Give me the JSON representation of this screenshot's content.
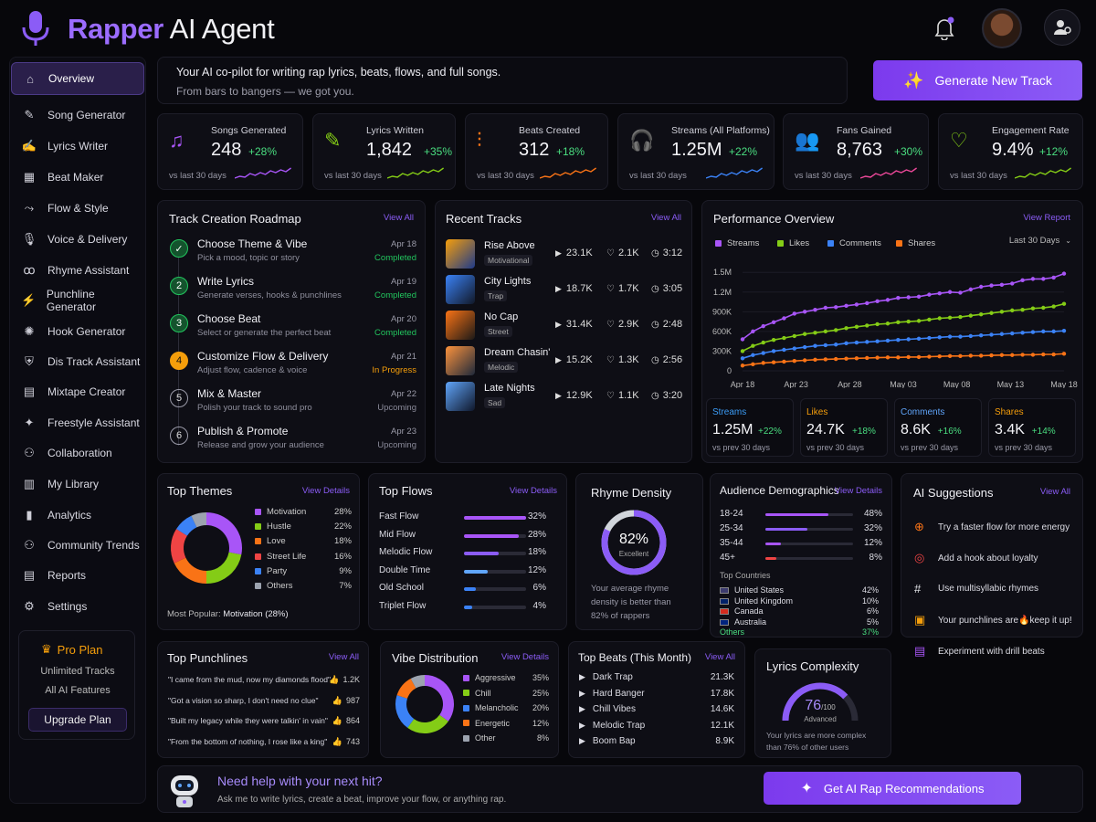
{
  "brand": {
    "part1": "Rapper",
    "part2": "AI Agent"
  },
  "header": {
    "tagline": "Your AI co-pilot for writing rap lyrics, beats, flows, and full songs.",
    "subtagline": "From bars to bangers — we got you.",
    "generate_button": "Generate New Track"
  },
  "sidebar": {
    "items": [
      {
        "label": "Overview",
        "active": true
      },
      {
        "label": "Song Generator"
      },
      {
        "label": "Lyrics Writer"
      },
      {
        "label": "Beat Maker"
      },
      {
        "label": "Flow & Style"
      },
      {
        "label": "Voice & Delivery"
      },
      {
        "label": "Rhyme Assistant"
      },
      {
        "label": "Punchline Generator"
      },
      {
        "label": "Hook Generator"
      },
      {
        "label": "Dis Track Assistant"
      },
      {
        "label": "Mixtape Creator"
      },
      {
        "label": "Freestyle Assistant"
      },
      {
        "label": "Collaboration"
      },
      {
        "label": "My Library"
      },
      {
        "label": "Analytics"
      },
      {
        "label": "Community Trends"
      },
      {
        "label": "Reports"
      },
      {
        "label": "Settings"
      }
    ],
    "pro": {
      "title": "Pro Plan",
      "line1": "Unlimited Tracks",
      "line2": "All AI Features",
      "button": "Upgrade Plan"
    }
  },
  "stats": [
    {
      "label": "Songs Generated",
      "value": "248",
      "change": "+28%",
      "sub": "vs last 30 days",
      "color": "#a855f7"
    },
    {
      "label": "Lyrics Written",
      "value": "1,842",
      "change": "+35%",
      "sub": "vs last 30 days",
      "color": "#84cc16"
    },
    {
      "label": "Beats Created",
      "value": "312",
      "change": "+18%",
      "sub": "vs last 30 days",
      "color": "#f97316"
    },
    {
      "label": "Streams (All Platforms)",
      "value": "1.25M",
      "change": "+22%",
      "sub": "vs last 30 days",
      "color": "#3b82f6"
    },
    {
      "label": "Fans Gained",
      "value": "8,763",
      "change": "+30%",
      "sub": "vs last 30 days",
      "color": "#ec4899"
    },
    {
      "label": "Engagement Rate",
      "value": "9.4%",
      "change": "+12%",
      "sub": "vs last 30 days",
      "color": "#84cc16"
    }
  ],
  "roadmap": {
    "title": "Track Creation Roadmap",
    "link": "View All",
    "steps": [
      {
        "num": "✓",
        "title": "Choose Theme & Vibe",
        "desc": "Pick a mood, topic or story",
        "date": "Apr 18",
        "status": "Completed"
      },
      {
        "num": "2",
        "title": "Write Lyrics",
        "desc": "Generate verses, hooks & punchlines",
        "date": "Apr 19",
        "status": "Completed"
      },
      {
        "num": "3",
        "title": "Choose Beat",
        "desc": "Select or generate the perfect beat",
        "date": "Apr 20",
        "status": "Completed"
      },
      {
        "num": "4",
        "title": "Customize Flow & Delivery",
        "desc": "Adjust flow, cadence & voice",
        "date": "Apr 21",
        "status": "In Progress"
      },
      {
        "num": "5",
        "title": "Mix & Master",
        "desc": "Polish your track to sound pro",
        "date": "Apr 22",
        "status": "Upcoming"
      },
      {
        "num": "6",
        "title": "Publish & Promote",
        "desc": "Release and grow your audience",
        "date": "Apr 23",
        "status": "Upcoming"
      }
    ]
  },
  "recent": {
    "title": "Recent Tracks",
    "link": "View All",
    "tracks": [
      {
        "name": "Rise Above",
        "tag": "Motivational",
        "plays": "23.1K",
        "likes": "2.1K",
        "dur": "3:12"
      },
      {
        "name": "City Lights",
        "tag": "Trap",
        "plays": "18.7K",
        "likes": "1.7K",
        "dur": "3:05"
      },
      {
        "name": "No Cap",
        "tag": "Street",
        "plays": "31.4K",
        "likes": "2.9K",
        "dur": "2:48"
      },
      {
        "name": "Dream Chasin'",
        "tag": "Melodic",
        "plays": "15.2K",
        "likes": "1.3K",
        "dur": "2:56"
      },
      {
        "name": "Late Nights",
        "tag": "Sad",
        "plays": "12.9K",
        "likes": "1.1K",
        "dur": "3:20"
      }
    ]
  },
  "performance": {
    "title": "Performance Overview",
    "link": "View Report",
    "range": "Last 30 Days",
    "kpis": [
      {
        "label": "Streams",
        "value": "1.25M",
        "change": "+22%",
        "sub": "vs prev 30 days",
        "color": "#3b9cf6"
      },
      {
        "label": "Likes",
        "value": "24.7K",
        "change": "+18%",
        "sub": "vs prev 30 days",
        "color": "#f59e0b"
      },
      {
        "label": "Comments",
        "value": "8.6K",
        "change": "+16%",
        "sub": "vs prev 30 days",
        "color": "#60a5fa"
      },
      {
        "label": "Shares",
        "value": "3.4K",
        "change": "+14%",
        "sub": "vs prev 30 days",
        "color": "#f59e0b"
      }
    ]
  },
  "chart_data": {
    "type": "line",
    "x": [
      "Apr 18",
      "",
      "",
      "",
      "",
      "Apr 23",
      "",
      "",
      "",
      "",
      "",
      "Apr 28",
      "",
      "",
      "",
      "",
      "May 03",
      "",
      "",
      "",
      "",
      "May 08",
      "",
      "",
      "",
      "",
      "May 13",
      "",
      "",
      "",
      "",
      "May 18"
    ],
    "xticks": [
      "Apr 18",
      "Apr 23",
      "Apr 28",
      "May 03",
      "May 08",
      "May 13",
      "May 18"
    ],
    "yticks": [
      "0",
      "300K",
      "600K",
      "900K",
      "1.2M",
      "1.5M"
    ],
    "ylim": [
      0,
      1600000
    ],
    "series": [
      {
        "name": "Streams",
        "color": "#a855f7",
        "values": [
          480000,
          600000,
          680000,
          740000,
          800000,
          870000,
          900000,
          930000,
          960000,
          970000,
          990000,
          1010000,
          1030000,
          1060000,
          1080000,
          1110000,
          1120000,
          1130000,
          1160000,
          1180000,
          1200000,
          1190000,
          1240000,
          1280000,
          1300000,
          1310000,
          1330000,
          1380000,
          1400000,
          1400000,
          1420000,
          1480000
        ]
      },
      {
        "name": "Likes",
        "color": "#84cc16",
        "values": [
          300000,
          380000,
          430000,
          470000,
          500000,
          530000,
          560000,
          580000,
          600000,
          620000,
          650000,
          670000,
          690000,
          710000,
          720000,
          740000,
          750000,
          760000,
          780000,
          800000,
          810000,
          820000,
          840000,
          860000,
          880000,
          900000,
          920000,
          930000,
          950000,
          960000,
          980000,
          1020000
        ]
      },
      {
        "name": "Comments",
        "color": "#3b82f6",
        "values": [
          190000,
          240000,
          270000,
          300000,
          320000,
          340000,
          360000,
          380000,
          390000,
          400000,
          420000,
          430000,
          440000,
          450000,
          460000,
          470000,
          480000,
          490000,
          500000,
          510000,
          520000,
          520000,
          530000,
          540000,
          550000,
          560000,
          570000,
          580000,
          590000,
          600000,
          600000,
          610000
        ]
      },
      {
        "name": "Shares",
        "color": "#f97316",
        "values": [
          80000,
          100000,
          120000,
          130000,
          140000,
          150000,
          160000,
          170000,
          175000,
          180000,
          185000,
          190000,
          195000,
          200000,
          205000,
          205000,
          210000,
          210000,
          215000,
          220000,
          225000,
          225000,
          230000,
          230000,
          235000,
          240000,
          240000,
          245000,
          245000,
          250000,
          250000,
          260000
        ]
      }
    ]
  },
  "themes": {
    "title": "Top Themes",
    "link": "View Details",
    "footer_label": "Most Popular:",
    "footer_value": "Motivation (28%)",
    "items": [
      {
        "label": "Motivation",
        "pct": "28%",
        "v": 28,
        "color": "#a855f7"
      },
      {
        "label": "Hustle",
        "pct": "22%",
        "v": 22,
        "color": "#84cc16"
      },
      {
        "label": "Love",
        "pct": "18%",
        "v": 18,
        "color": "#f97316"
      },
      {
        "label": "Street Life",
        "pct": "16%",
        "v": 16,
        "color": "#ef4444"
      },
      {
        "label": "Party",
        "pct": "9%",
        "v": 9,
        "color": "#3b82f6"
      },
      {
        "label": "Others",
        "pct": "7%",
        "v": 7,
        "color": "#9ca3af"
      }
    ]
  },
  "flows": {
    "title": "Top Flows",
    "link": "View Details",
    "items": [
      {
        "label": "Fast Flow",
        "pct": "32%",
        "v": 32
      },
      {
        "label": "Mid Flow",
        "pct": "28%",
        "v": 28
      },
      {
        "label": "Melodic Flow",
        "pct": "18%",
        "v": 18
      },
      {
        "label": "Double Time",
        "pct": "12%",
        "v": 12
      },
      {
        "label": "Old School",
        "pct": "6%",
        "v": 6
      },
      {
        "label": "Triplet Flow",
        "pct": "4%",
        "v": 4
      }
    ]
  },
  "rhyme": {
    "title": "Rhyme Density",
    "value": "82%",
    "v": 82,
    "level": "Excellent",
    "text1": "Your average rhyme",
    "text2": "density is better than",
    "text3": "82% of rappers"
  },
  "demo": {
    "title": "Audience Demographics",
    "link": "View Details",
    "ages": [
      {
        "label": "18-24",
        "pct": "48%",
        "v": 48
      },
      {
        "label": "25-34",
        "pct": "32%",
        "v": 32
      },
      {
        "label": "35-44",
        "pct": "12%",
        "v": 12
      },
      {
        "label": "45+",
        "pct": "8%",
        "v": 8
      }
    ],
    "countries_title": "Top Countries",
    "countries": [
      {
        "label": "United States",
        "pct": "42%"
      },
      {
        "label": "United Kingdom",
        "pct": "10%"
      },
      {
        "label": "Canada",
        "pct": "6%"
      },
      {
        "label": "Australia",
        "pct": "5%"
      },
      {
        "label": "Others",
        "pct": "37%"
      }
    ]
  },
  "suggestions": {
    "title": "AI Suggestions",
    "link": "View All",
    "items": [
      {
        "text": "Try a faster flow for more energy",
        "icon": "bolt-icon",
        "color": "#f97316"
      },
      {
        "text": "Add a hook about loyalty",
        "icon": "target-icon",
        "color": "#ef4444"
      },
      {
        "text": "Use multisyllabic rhymes",
        "icon": "hash-icon",
        "color": "#e5e7eb"
      },
      {
        "text": "Your punchlines are🔥keep it up!",
        "icon": "fire-icon",
        "color": "#f59e0b"
      },
      {
        "text": "Experiment with drill beats",
        "icon": "layers-icon",
        "color": "#a855f7"
      }
    ]
  },
  "punchlines": {
    "title": "Top Punchlines",
    "link": "View All",
    "items": [
      {
        "text": "\"I came from the mud, now my diamonds flood\"",
        "likes": "1.2K"
      },
      {
        "text": "\"Got a vision so sharp, I don't need no clue\"",
        "likes": "987"
      },
      {
        "text": "\"Built my legacy while they were talkin' in vain\"",
        "likes": "864"
      },
      {
        "text": "\"From the bottom of nothing, I rose like a king\"",
        "likes": "743"
      }
    ]
  },
  "vibe": {
    "title": "Vibe Distribution",
    "link": "View Details",
    "items": [
      {
        "label": "Aggressive",
        "pct": "35%",
        "v": 35,
        "color": "#a855f7"
      },
      {
        "label": "Chill",
        "pct": "25%",
        "v": 25,
        "color": "#84cc16"
      },
      {
        "label": "Melancholic",
        "pct": "20%",
        "v": 20,
        "color": "#3b82f6"
      },
      {
        "label": "Energetic",
        "pct": "12%",
        "v": 12,
        "color": "#f97316"
      },
      {
        "label": "Other",
        "pct": "8%",
        "v": 8,
        "color": "#9ca3af"
      }
    ]
  },
  "beats": {
    "title": "Top Beats (This Month)",
    "link": "View All",
    "items": [
      {
        "label": "Dark Trap",
        "value": "21.3K"
      },
      {
        "label": "Hard Banger",
        "value": "17.8K"
      },
      {
        "label": "Chill Vibes",
        "value": "14.6K"
      },
      {
        "label": "Melodic Trap",
        "value": "12.1K"
      },
      {
        "label": "Boom Bap",
        "value": "8.9K"
      }
    ]
  },
  "complexity": {
    "title": "Lyrics Complexity",
    "value": "76",
    "max": "/100",
    "v": 76,
    "level": "Advanced",
    "text1": "Your lyrics are more complex",
    "text2": "than 76% of other users"
  },
  "help": {
    "title": "Need help with your next hit?",
    "sub": "Ask me to write lyrics, create a beat, improve your flow, or anything rap.",
    "button": "Get AI Rap Recommendations"
  }
}
